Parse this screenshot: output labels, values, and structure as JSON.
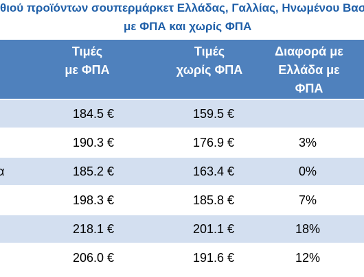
{
  "header": {
    "title_line1": "θιού προϊόντων σουπερμάρκετ Ελλάδας, Γαλλίας, Ηνωμένου Βασ",
    "title_line2": "με ΦΠΑ και χωρίς ΦΠΑ"
  },
  "table": {
    "columns": [
      [
        "Τιμές",
        "με ΦΠΑ"
      ],
      [
        "Τιμές",
        "χωρίς ΦΠΑ"
      ],
      [
        "Διαφορά με",
        "Ελλάδα με",
        "ΦΠΑ"
      ]
    ],
    "rows": [
      {
        "cells": [
          "184.5 €",
          "159.5 €"
        ]
      },
      {
        "cells": [
          "190.3 €",
          "176.9 €",
          "3%"
        ]
      },
      {
        "label": "α",
        "cells": [
          "185.2 €",
          "163.4 €",
          "0%"
        ]
      },
      {
        "cells": [
          "198.3 €",
          "185.8 €",
          "7%"
        ]
      },
      {
        "cells": [
          "218.1 €",
          "201.1 €",
          "18%"
        ]
      },
      {
        "cells": [
          "206.0 €",
          "191.6 €",
          "12%"
        ]
      }
    ]
  }
}
